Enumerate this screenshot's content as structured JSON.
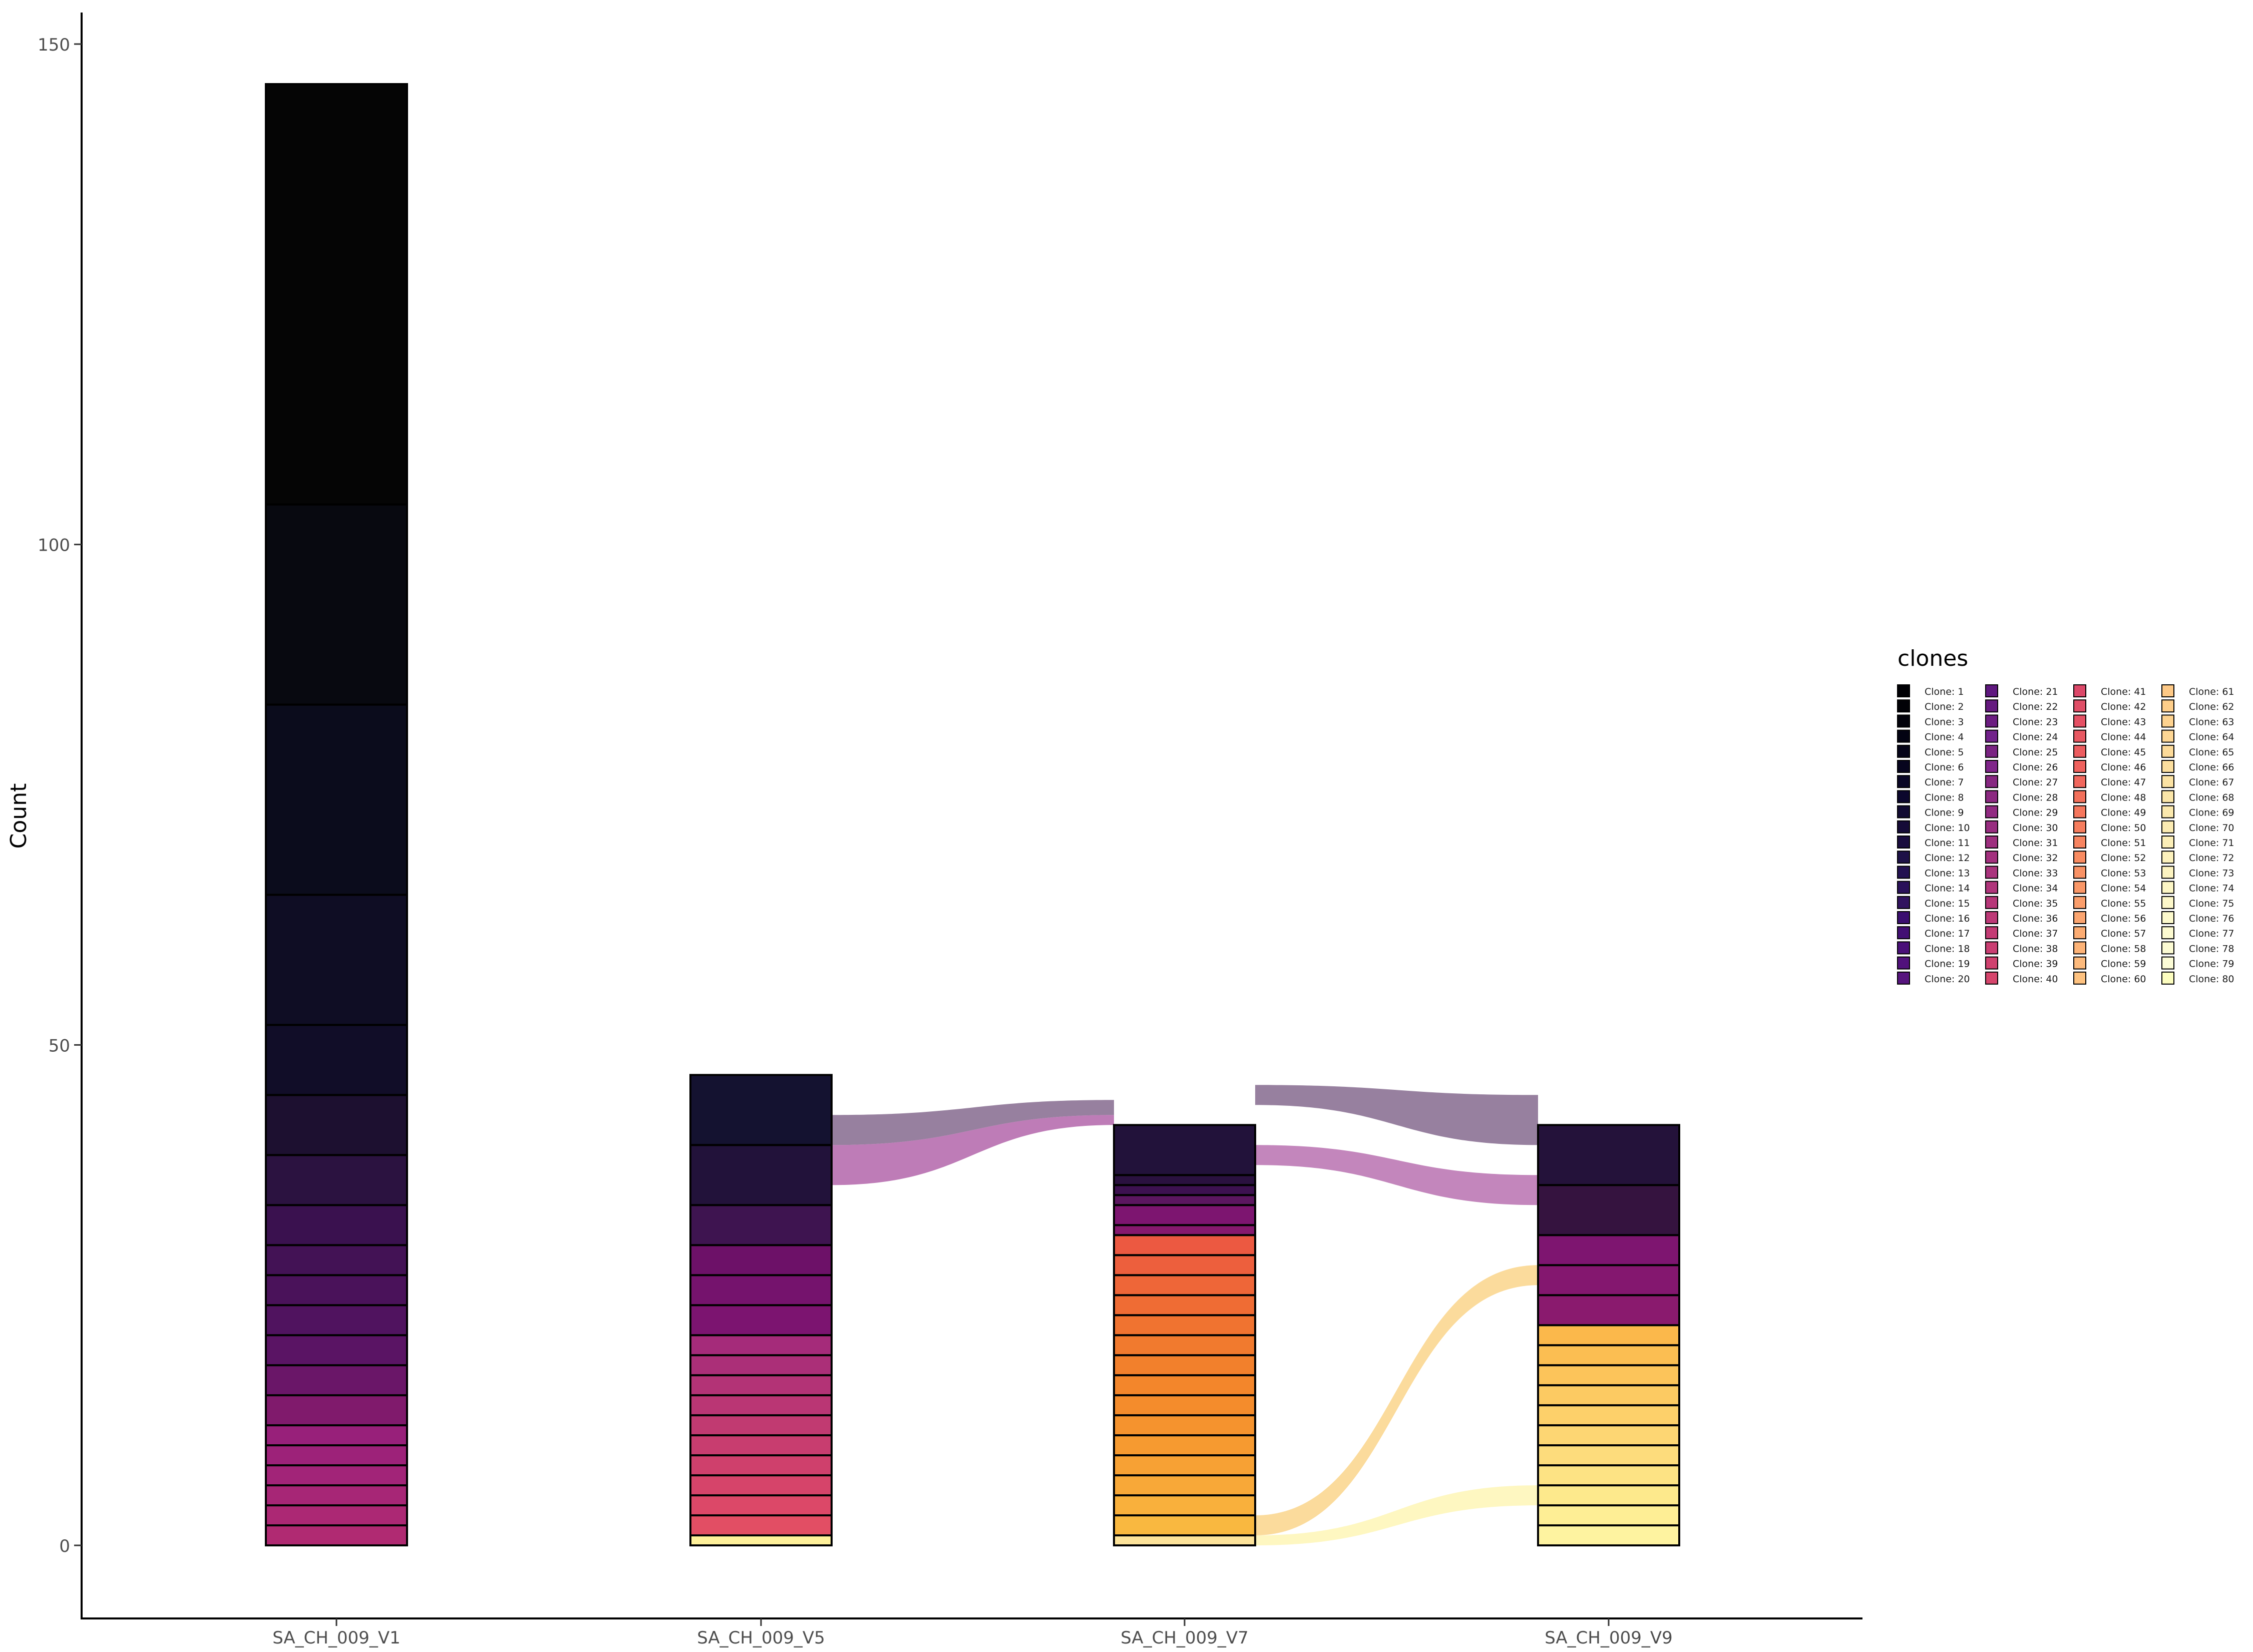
{
  "chart_data": {
    "type": "bar",
    "subtype": "stacked-alluvial",
    "title": "",
    "xlabel": "",
    "ylabel": "Count",
    "ylim": [
      0,
      150
    ],
    "yticks": [
      0,
      50,
      100,
      150
    ],
    "grid": false,
    "legend": {
      "title": "clones",
      "position": "right",
      "columns": 4,
      "entries": [
        "Clone: 1",
        "Clone: 2",
        "Clone: 3",
        "Clone: 4",
        "Clone: 5",
        "Clone: 6",
        "Clone: 7",
        "Clone: 8",
        "Clone: 9",
        "Clone: 10",
        "Clone: 11",
        "Clone: 12",
        "Clone: 13",
        "Clone: 14",
        "Clone: 15",
        "Clone: 16",
        "Clone: 17",
        "Clone: 18",
        "Clone: 19",
        "Clone: 20",
        "Clone: 21",
        "Clone: 22",
        "Clone: 23",
        "Clone: 24",
        "Clone: 25",
        "Clone: 26",
        "Clone: 27",
        "Clone: 28",
        "Clone: 29",
        "Clone: 30",
        "Clone: 31",
        "Clone: 32",
        "Clone: 33",
        "Clone: 34",
        "Clone: 35",
        "Clone: 36",
        "Clone: 37",
        "Clone: 38",
        "Clone: 39",
        "Clone: 40",
        "Clone: 41",
        "Clone: 42",
        "Clone: 43",
        "Clone: 44",
        "Clone: 45",
        "Clone: 46",
        "Clone: 47",
        "Clone: 48",
        "Clone: 49",
        "Clone: 50",
        "Clone: 51",
        "Clone: 52",
        "Clone: 53",
        "Clone: 54",
        "Clone: 55",
        "Clone: 56",
        "Clone: 57",
        "Clone: 58",
        "Clone: 59",
        "Clone: 60",
        "Clone: 61",
        "Clone: 62",
        "Clone: 63",
        "Clone: 64",
        "Clone: 65",
        "Clone: 66",
        "Clone: 67",
        "Clone: 68",
        "Clone: 69",
        "Clone: 70",
        "Clone: 71",
        "Clone: 72",
        "Clone: 73",
        "Clone: 74",
        "Clone: 75",
        "Clone: 76",
        "Clone: 77",
        "Clone: 78",
        "Clone: 79",
        "Clone: 80"
      ]
    },
    "palette": [
      "#000004",
      "#010106",
      "#02020b",
      "#030312",
      "#050418",
      "#07051e",
      "#090625",
      "#0c072d",
      "#110a31",
      "#150b37",
      "#190c3e",
      "#1d1147",
      "#231151",
      "#2a115a",
      "#31135f",
      "#3b0f70",
      "#420f74",
      "#4a1079",
      "#51127c",
      "#57157e",
      "#5f187f",
      "#65197f",
      "#6c1d81",
      "#72218b",
      "#7a2382",
      "#80258a",
      "#872781",
      "#8c2981",
      "#922a82",
      "#982d80",
      "#9e2f7f",
      "#a3307e",
      "#aa337d",
      "#b0357b",
      "#b73779",
      "#bd3977",
      "#c43c75",
      "#ca3e72",
      "#d0416f",
      "#d6456c",
      "#dc4869",
      "#e04e67",
      "#e55064",
      "#e85862",
      "#ec5c5f",
      "#ef615d",
      "#f1675d",
      "#f3705b",
      "#f5765c",
      "#f67d5e",
      "#f78460",
      "#f98b61",
      "#f99265",
      "#fa9767",
      "#fb9e6b",
      "#fba570",
      "#fcac72",
      "#fdb377",
      "#fdba7c",
      "#fec280",
      "#fec986",
      "#fece8a",
      "#fdd28f",
      "#fdd694",
      "#fcda99",
      "#fbde9e",
      "#fbe2a3",
      "#fae5a8",
      "#fae8ad",
      "#fbebb2",
      "#fbeeb7",
      "#fcf1bc",
      "#fcf3c0",
      "#fcf6c5",
      "#fcf7c9",
      "#fcf9cc",
      "#fcfad0",
      "#fcfbd3",
      "#fcfcd6",
      "#fcfdbf"
    ],
    "categories": [
      "SA_CH_009_V1",
      "SA_CH_009_V5",
      "SA_CH_009_V7",
      "SA_CH_009_V9"
    ],
    "stacks": [
      {
        "sample": "SA_CH_009_V1",
        "segments": [
          {
            "clone": 20,
            "value": 2,
            "color": "#b02a72"
          },
          {
            "clone": 19,
            "value": 2,
            "color": "#ac2874"
          },
          {
            "clone": 18,
            "value": 2,
            "color": "#a72676"
          },
          {
            "clone": 17,
            "value": 2,
            "color": "#a22478"
          },
          {
            "clone": 16,
            "value": 2,
            "color": "#9d2279"
          },
          {
            "clone": 15,
            "value": 2,
            "color": "#98207a"
          },
          {
            "clone": 14,
            "value": 3,
            "color": "#801a6c"
          },
          {
            "clone": 13,
            "value": 3,
            "color": "#6a1668"
          },
          {
            "clone": 12,
            "value": 3,
            "color": "#5a1464"
          },
          {
            "clone": 11,
            "value": 3,
            "color": "#50135f"
          },
          {
            "clone": 10,
            "value": 3,
            "color": "#4a125a"
          },
          {
            "clone": 9,
            "value": 3,
            "color": "#431255"
          },
          {
            "clone": 8,
            "value": 4,
            "color": "#3a114f"
          },
          {
            "clone": 7,
            "value": 5,
            "color": "#2b1240"
          },
          {
            "clone": 6,
            "value": 6,
            "color": "#1d1030"
          },
          {
            "clone": 5,
            "value": 7,
            "color": "#110d28"
          },
          {
            "clone": 4,
            "value": 13,
            "color": "#0f0d24"
          },
          {
            "clone": 3,
            "value": 19,
            "color": "#0b0c1c"
          },
          {
            "clone": 2,
            "value": 20,
            "color": "#080910"
          },
          {
            "clone": 1,
            "value": 42,
            "color": "#050505"
          }
        ]
      },
      {
        "sample": "SA_CH_009_V5",
        "segments": [
          {
            "clone": 80,
            "value": 1,
            "color": "#fef09a"
          },
          {
            "clone": 40,
            "value": 2,
            "color": "#e24e64"
          },
          {
            "clone": 39,
            "value": 2,
            "color": "#dc4868"
          },
          {
            "clone": 38,
            "value": 2,
            "color": "#d6446a"
          },
          {
            "clone": 37,
            "value": 2,
            "color": "#cf406c"
          },
          {
            "clone": 36,
            "value": 2,
            "color": "#c83d6f"
          },
          {
            "clone": 35,
            "value": 2,
            "color": "#c13a71"
          },
          {
            "clone": 34,
            "value": 2,
            "color": "#ba3674"
          },
          {
            "clone": 33,
            "value": 2,
            "color": "#b33376"
          },
          {
            "clone": 32,
            "value": 2,
            "color": "#ab2f78"
          },
          {
            "clone": 31,
            "value": 2,
            "color": "#a52b7a"
          },
          {
            "clone": 30,
            "value": 3,
            "color": "#7c1470"
          },
          {
            "clone": 29,
            "value": 3,
            "color": "#75136d"
          },
          {
            "clone": 28,
            "value": 3,
            "color": "#6d1168"
          },
          {
            "clone": 27,
            "value": 4,
            "color": "#3e1450"
          },
          {
            "clone": 26,
            "value": 6,
            "color": "#22123a"
          },
          {
            "clone": 25,
            "value": 7,
            "color": "#141230"
          }
        ]
      },
      {
        "sample": "SA_CH_009_V7",
        "segments": [
          {
            "clone": 79,
            "value": 1,
            "color": "#fde39a"
          },
          {
            "clone": 60,
            "value": 2,
            "color": "#f9b840"
          },
          {
            "clone": 59,
            "value": 2,
            "color": "#f9b03c"
          },
          {
            "clone": 58,
            "value": 2,
            "color": "#f8a838"
          },
          {
            "clone": 57,
            "value": 2,
            "color": "#f7a134"
          },
          {
            "clone": 56,
            "value": 2,
            "color": "#f69a30"
          },
          {
            "clone": 55,
            "value": 2,
            "color": "#f5932e"
          },
          {
            "clone": 54,
            "value": 2,
            "color": "#f48c2c"
          },
          {
            "clone": 53,
            "value": 2,
            "color": "#f3862b"
          },
          {
            "clone": 52,
            "value": 2,
            "color": "#f2802c"
          },
          {
            "clone": 51,
            "value": 2,
            "color": "#f17a2e"
          },
          {
            "clone": 50,
            "value": 2,
            "color": "#f07330"
          },
          {
            "clone": 49,
            "value": 2,
            "color": "#ef6c34"
          },
          {
            "clone": 48,
            "value": 2,
            "color": "#ee6638"
          },
          {
            "clone": 47,
            "value": 2,
            "color": "#ed5f3d"
          },
          {
            "clone": 46,
            "value": 2,
            "color": "#ec5941"
          },
          {
            "clone": 45,
            "value": 1,
            "color": "#86196e"
          },
          {
            "clone": 44,
            "value": 2,
            "color": "#7d1570"
          },
          {
            "clone": 43,
            "value": 1,
            "color": "#5c1660"
          },
          {
            "clone": 42,
            "value": 1,
            "color": "#3d1150"
          },
          {
            "clone": 41,
            "value": 1,
            "color": "#2a113f"
          },
          {
            "clone": 26,
            "value": 5,
            "color": "#22123a"
          }
        ]
      },
      {
        "sample": "SA_CH_009_V9",
        "segments": [
          {
            "clone": 78,
            "value": 2,
            "color": "#fef3a0"
          },
          {
            "clone": 77,
            "value": 2,
            "color": "#feee95"
          },
          {
            "clone": 76,
            "value": 2,
            "color": "#fde98c"
          },
          {
            "clone": 75,
            "value": 2,
            "color": "#fde384"
          },
          {
            "clone": 74,
            "value": 2,
            "color": "#fddc7c"
          },
          {
            "clone": 73,
            "value": 2,
            "color": "#fdd673"
          },
          {
            "clone": 72,
            "value": 2,
            "color": "#fdd06a"
          },
          {
            "clone": 71,
            "value": 2,
            "color": "#fcca62"
          },
          {
            "clone": 70,
            "value": 2,
            "color": "#fcc45a"
          },
          {
            "clone": 69,
            "value": 2,
            "color": "#fbbe52"
          },
          {
            "clone": 68,
            "value": 2,
            "color": "#fbb84b"
          },
          {
            "clone": 67,
            "value": 3,
            "color": "#8a1a6e"
          },
          {
            "clone": 66,
            "value": 3,
            "color": "#84176f"
          },
          {
            "clone": 65,
            "value": 3,
            "color": "#7e1570"
          },
          {
            "clone": 64,
            "value": 5,
            "color": "#35133f"
          },
          {
            "clone": 63,
            "value": 6,
            "color": "#24123a"
          }
        ]
      }
    ],
    "flows": [
      {
        "from": "SA_CH_009_V5",
        "to": "SA_CH_009_V7",
        "range_from": [
          40,
          43
        ],
        "range_to": [
          43,
          44.5
        ],
        "color": "#6b4a76",
        "opacity": 0.7
      },
      {
        "from": "SA_CH_009_V5",
        "to": "SA_CH_009_V7",
        "range_from": [
          36,
          40
        ],
        "range_to": [
          42,
          43
        ],
        "color": "#a34598",
        "opacity": 0.7
      },
      {
        "from": "SA_CH_009_V7",
        "to": "SA_CH_009_V9",
        "range_from": [
          44,
          46
        ],
        "range_to": [
          40,
          45
        ],
        "color": "#6b4a76",
        "opacity": 0.7
      },
      {
        "from": "SA_CH_009_V7",
        "to": "SA_CH_009_V9",
        "range_from": [
          38,
          40
        ],
        "range_to": [
          34,
          37
        ],
        "color": "#a34598",
        "opacity": 0.65
      },
      {
        "from": "SA_CH_009_V7",
        "to": "SA_CH_009_V9",
        "range_from": [
          1,
          3
        ],
        "range_to": [
          26,
          28
        ],
        "color": "#f8c35a",
        "opacity": 0.6
      },
      {
        "from": "SA_CH_009_V7",
        "to": "SA_CH_009_V9",
        "range_from": [
          0,
          1
        ],
        "range_to": [
          4,
          6
        ],
        "color": "#fdf08e",
        "opacity": 0.55
      }
    ]
  }
}
